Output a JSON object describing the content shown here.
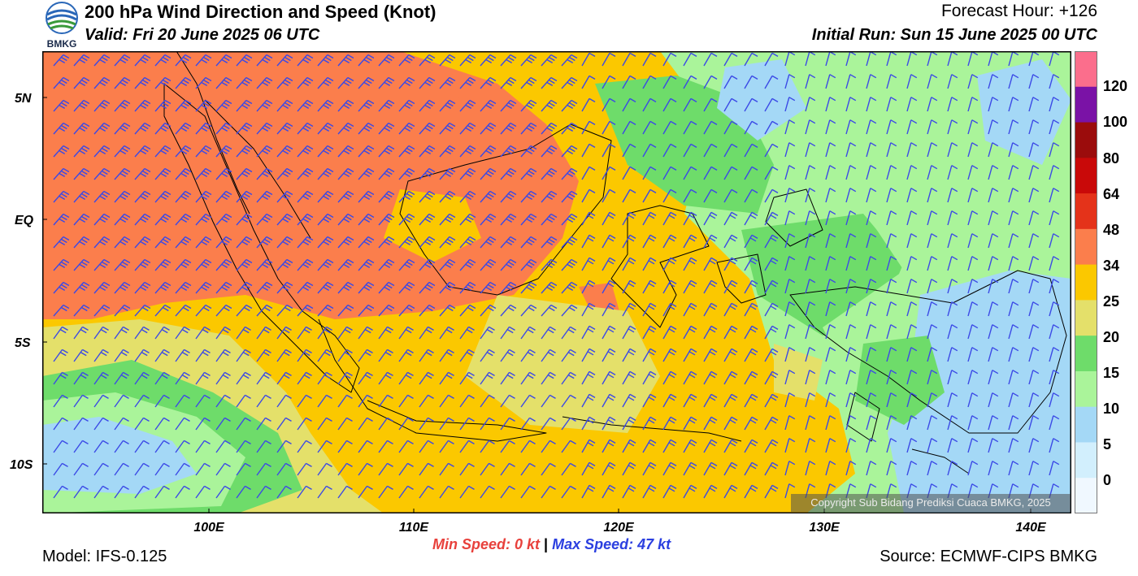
{
  "header": {
    "title": "200 hPa Wind Direction and Speed (Knot)",
    "valid": "Valid: Fri 20 June 2025 06 UTC",
    "forecast_hour": "Forecast Hour: +126",
    "initial_run": "Initial Run: Sun 15 June 2025 00 UTC"
  },
  "logo": {
    "text": "BMKG"
  },
  "axes": {
    "lat_labels": [
      "5N",
      "EQ",
      "5S",
      "10S"
    ],
    "lon_labels": [
      "100E",
      "110E",
      "120E",
      "130E",
      "140E"
    ]
  },
  "colorbar": {
    "labels": [
      "120",
      "100",
      "80",
      "64",
      "48",
      "34",
      "25",
      "20",
      "15",
      "10",
      "5",
      "0"
    ],
    "colors": [
      "#fb6e8c",
      "#7a12a6",
      "#9b0c0c",
      "#c90909",
      "#e4331a",
      "#fb7e4c",
      "#fbc800",
      "#e4e06a",
      "#6edc6a",
      "#aaf49a",
      "#a4d8f6",
      "#d2effd",
      "#f0f8ff"
    ]
  },
  "footer": {
    "min_speed": "Min Speed:   0 kt",
    "separator": "|",
    "max_speed": "Max Speed:  47 kt",
    "model": "Model: IFS-0.125",
    "source": "Source: ECMWF-CIPS BMKG",
    "copyright": "Copyright Sub Bidang Prediksi Cuaca BMKG, 2025"
  },
  "map_colors": {
    "speed_34_48": "#fb7e4c",
    "speed_25_34": "#fbc800",
    "speed_20_25": "#e4e06a",
    "speed_15_20": "#6edc6a",
    "speed_10_15": "#aaf49a",
    "speed_5_10": "#a4d8f6",
    "barb": "#3b49e6",
    "coast": "#000000"
  }
}
